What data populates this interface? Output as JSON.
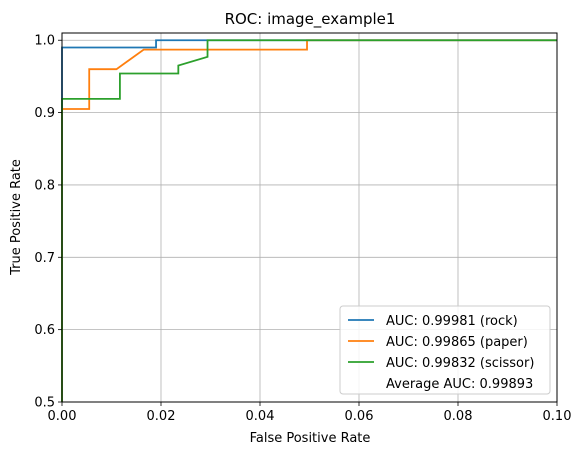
{
  "chart_data": {
    "type": "line",
    "title": "ROC: image_example1",
    "xlabel": "False Positive Rate",
    "ylabel": "True Positive Rate",
    "xlim": [
      0,
      0.1
    ],
    "ylim": [
      0.5,
      1.01
    ],
    "xticks": [
      0.0,
      0.02,
      0.04,
      0.06,
      0.08,
      0.1
    ],
    "xtick_labels": [
      "0.00",
      "0.02",
      "0.04",
      "0.06",
      "0.08",
      "0.10"
    ],
    "yticks": [
      0.5,
      0.6,
      0.7,
      0.8,
      0.9,
      1.0
    ],
    "ytick_labels": [
      "0.5",
      "0.6",
      "0.7",
      "0.8",
      "0.9",
      "1.0"
    ],
    "grid": true,
    "legend_position": "lower-right",
    "series": [
      {
        "name": "AUC: 0.99981 (rock)",
        "color": "#1f77b4",
        "x": [
          0,
          0,
          0.019,
          0.019,
          0.1
        ],
        "y": [
          0.5,
          0.99,
          0.99,
          1.0,
          1.0
        ]
      },
      {
        "name": "AUC: 0.99865 (paper)",
        "color": "#ff7f0e",
        "x": [
          0,
          0,
          0.0055,
          0.0055,
          0.011,
          0.0165,
          0.0165,
          0.0495,
          0.0495,
          0.1
        ],
        "y": [
          0.5,
          0.905,
          0.905,
          0.96,
          0.96,
          0.987,
          0.987,
          0.987,
          1.0,
          1.0
        ]
      },
      {
        "name": "AUC: 0.99832 (scissor)",
        "color": "#2ca02c",
        "x": [
          0,
          0,
          0.0117,
          0.0117,
          0.0235,
          0.0235,
          0.0294,
          0.0294,
          0.1
        ],
        "y": [
          0.5,
          0.919,
          0.919,
          0.954,
          0.954,
          0.965,
          0.977,
          1.0,
          1.0
        ]
      }
    ],
    "legend_extra": "Average AUC: 0.99893"
  }
}
